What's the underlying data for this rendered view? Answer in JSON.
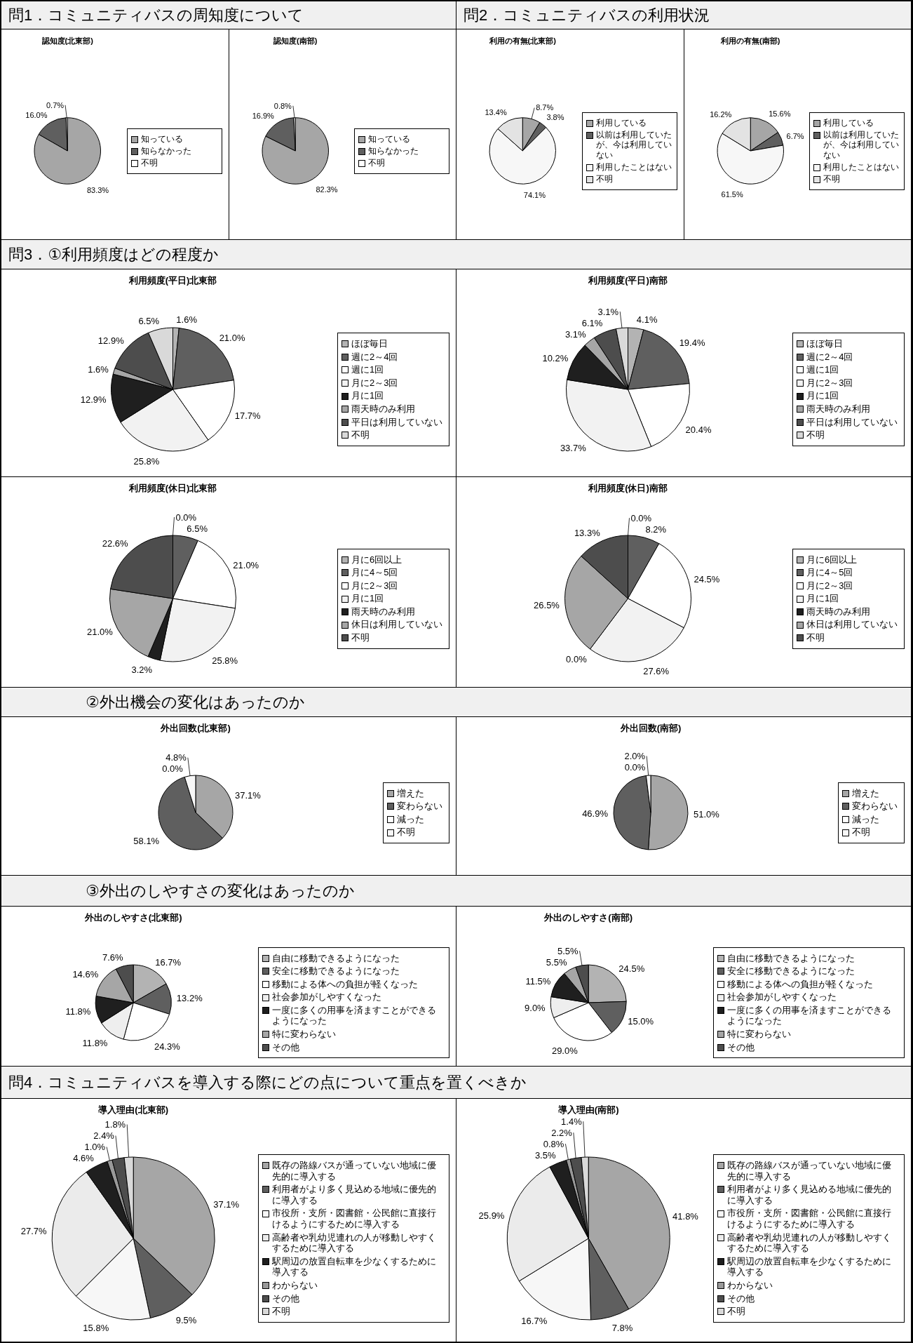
{
  "chart_data": [
    {
      "type": "pie",
      "title": "認知度(北東部)",
      "annotations": [
        "問1．コミュニティバスの周知度について"
      ],
      "categories": [
        "知っている",
        "知らなかった",
        "不明"
      ],
      "values": [
        83.3,
        16.0,
        0.7
      ],
      "value_labels": [
        "83.3%",
        "16.0%",
        "0.7%"
      ],
      "colors": [
        "#a6a6a6",
        "#5f5f5f",
        "#ffffff"
      ],
      "legend": "right"
    },
    {
      "type": "pie",
      "title": "認知度(南部)",
      "categories": [
        "知っている",
        "知らなかった",
        "不明"
      ],
      "values": [
        82.3,
        16.9,
        0.8
      ],
      "value_labels": [
        "82.3%",
        "16.9%",
        "0.8%"
      ],
      "colors": [
        "#a6a6a6",
        "#5f5f5f",
        "#ffffff"
      ],
      "legend": "right"
    },
    {
      "type": "pie",
      "title": "利用の有無(北東部)",
      "annotations": [
        "問2．コミュニティバスの利用状況"
      ],
      "categories": [
        "利用している",
        "以前は利用していたが、今は利用していない",
        "利用したことはない",
        "不明"
      ],
      "values": [
        8.7,
        3.8,
        74.1,
        13.4
      ],
      "value_labels": [
        "8.7%",
        "3.8%",
        "74.1%",
        "13.4%"
      ],
      "colors": [
        "#a6a6a6",
        "#5f5f5f",
        "#f7f7f7",
        "#e3e3e3"
      ],
      "legend": "right"
    },
    {
      "type": "pie",
      "title": "利用の有無(南部)",
      "categories": [
        "利用している",
        "以前は利用していたが、今は利用していない",
        "利用したことはない",
        "不明"
      ],
      "values": [
        15.6,
        6.7,
        61.5,
        16.2
      ],
      "value_labels": [
        "15.6%",
        "6.7%",
        "61.5%",
        "16.2%"
      ],
      "colors": [
        "#a6a6a6",
        "#5f5f5f",
        "#f7f7f7",
        "#e3e3e3"
      ],
      "legend": "right"
    },
    {
      "type": "pie",
      "title": "利用頻度(平日)北東部",
      "annotations": [
        "問3．①利用頻度はどの程度か"
      ],
      "categories": [
        "ほぼ毎日",
        "週に2～4回",
        "週に1回",
        "月に2～3回",
        "月に1回",
        "雨天時のみ利用",
        "平日は利用していない",
        "不明"
      ],
      "values": [
        1.6,
        21.0,
        17.7,
        25.8,
        12.9,
        1.6,
        12.9,
        6.5
      ],
      "value_labels": [
        "1.6%",
        "21.0%",
        "17.7%",
        "25.8%",
        "12.9%",
        "1.6%",
        "12.9%",
        "6.5%"
      ],
      "colors": [
        "#b3b3b3",
        "#5f5f5f",
        "#ffffff",
        "#f2f2f2",
        "#1f1f1f",
        "#a6a6a6",
        "#4d4d4d",
        "#d9d9d9"
      ],
      "legend": "right"
    },
    {
      "type": "pie",
      "title": "利用頻度(平日)南部",
      "categories": [
        "ほぼ毎日",
        "週に2～4回",
        "週に1回",
        "月に2～3回",
        "月に1回",
        "雨天時のみ利用",
        "平日は利用していない",
        "不明"
      ],
      "values": [
        4.1,
        19.4,
        20.4,
        33.7,
        10.2,
        3.1,
        6.1,
        3.1
      ],
      "value_labels": [
        "4.1%",
        "19.4%",
        "20.4%",
        "33.7%",
        "10.2%",
        "3.1%",
        "6.1%",
        "3.1%"
      ],
      "colors": [
        "#b3b3b3",
        "#5f5f5f",
        "#ffffff",
        "#f2f2f2",
        "#1f1f1f",
        "#a6a6a6",
        "#4d4d4d",
        "#d9d9d9"
      ],
      "legend": "right"
    },
    {
      "type": "pie",
      "title": "利用頻度(休日)北東部",
      "categories": [
        "月に6回以上",
        "月に4～5回",
        "月に2～3回",
        "月に1回",
        "雨天時のみ利用",
        "休日は利用していない",
        "不明"
      ],
      "values": [
        0.0,
        6.5,
        21.0,
        25.8,
        3.2,
        21.0,
        22.6
      ],
      "value_labels": [
        "0.0%",
        "6.5%",
        "21.0%",
        "25.8%",
        "3.2%",
        "21.0%",
        "22.6%"
      ],
      "colors": [
        "#b3b3b3",
        "#5f5f5f",
        "#ffffff",
        "#f2f2f2",
        "#1f1f1f",
        "#a6a6a6",
        "#4d4d4d"
      ],
      "legend": "right"
    },
    {
      "type": "pie",
      "title": "利用頻度(休日)南部",
      "categories": [
        "月に6回以上",
        "月に4～5回",
        "月に2～3回",
        "月に1回",
        "雨天時のみ利用",
        "休日は利用していない",
        "不明"
      ],
      "values": [
        0.0,
        8.2,
        24.5,
        27.6,
        0.0,
        26.5,
        13.3
      ],
      "value_labels": [
        "0.0%",
        "8.2%",
        "24.5%",
        "27.6%",
        "0.0%",
        "26.5%",
        "13.3%"
      ],
      "colors": [
        "#b3b3b3",
        "#5f5f5f",
        "#ffffff",
        "#f2f2f2",
        "#1f1f1f",
        "#a6a6a6",
        "#4d4d4d"
      ],
      "legend": "right"
    },
    {
      "type": "pie",
      "title": "外出回数(北東部)",
      "annotations": [
        "②外出機会の変化はあったのか"
      ],
      "categories": [
        "増えた",
        "変わらない",
        "減った",
        "不明"
      ],
      "values": [
        37.1,
        58.1,
        0.0,
        4.8
      ],
      "value_labels": [
        "37.1%",
        "58.1%",
        "0.0%",
        "4.8%"
      ],
      "colors": [
        "#a6a6a6",
        "#5f5f5f",
        "#ffffff",
        "#f7f7f7"
      ],
      "legend": "right"
    },
    {
      "type": "pie",
      "title": "外出回数(南部)",
      "categories": [
        "増えた",
        "変わらない",
        "減った",
        "不明"
      ],
      "values": [
        51.0,
        46.9,
        0.0,
        2.0
      ],
      "value_labels": [
        "51.0%",
        "46.9%",
        "0.0%",
        "2.0%"
      ],
      "colors": [
        "#a6a6a6",
        "#5f5f5f",
        "#ffffff",
        "#f7f7f7"
      ],
      "legend": "right"
    },
    {
      "type": "pie",
      "title": "外出のしやすさ(北東部)",
      "annotations": [
        "③外出のしやすさの変化はあったのか"
      ],
      "categories": [
        "自由に移動できるようになった",
        "安全に移動できるようになった",
        "移動による体への負担が軽くなった",
        "社会参加がしやすくなった",
        "一度に多くの用事を済ますことができるようになった",
        "特に変わらない",
        "その他"
      ],
      "values": [
        16.7,
        13.2,
        24.3,
        11.8,
        11.8,
        14.6,
        7.6
      ],
      "value_labels": [
        "16.7%",
        "13.2%",
        "24.3%",
        "11.8%",
        "11.8%",
        "14.6%",
        "7.6%"
      ],
      "colors": [
        "#b3b3b3",
        "#5f5f5f",
        "#ffffff",
        "#eeeeee",
        "#1f1f1f",
        "#a6a6a6",
        "#4d4d4d"
      ],
      "legend": "right"
    },
    {
      "type": "pie",
      "title": "外出のしやすさ(南部)",
      "categories": [
        "自由に移動できるようになった",
        "安全に移動できるようになった",
        "移動による体への負担が軽くなった",
        "社会参加がしやすくなった",
        "一度に多くの用事を済ますことができるようになった",
        "特に変わらない",
        "その他"
      ],
      "values": [
        24.5,
        15.0,
        29.0,
        9.0,
        11.5,
        5.5,
        5.5
      ],
      "value_labels": [
        "24.5%",
        "15.0%",
        "29.0%",
        "9.0%",
        "11.5%",
        "5.5%",
        "5.5%"
      ],
      "colors": [
        "#b3b3b3",
        "#5f5f5f",
        "#ffffff",
        "#eeeeee",
        "#1f1f1f",
        "#a6a6a6",
        "#4d4d4d"
      ],
      "legend": "right"
    },
    {
      "type": "pie",
      "title": "導入理由(北東部)",
      "annotations": [
        "問4．コミュニティバスを導入する際にどの点について重点を置くべきか"
      ],
      "categories": [
        "既存の路線バスが通っていない地域に優先的に導入する",
        "利用者がより多く見込める地域に優先的に導入する",
        "市役所・支所・図書館・公民館に直接行けるようにするために導入する",
        "高齢者や乳幼児連れの人が移動しやすくするために導入する",
        "駅周辺の放置自転車を少なくするために導入する",
        "わからない",
        "その他",
        "不明"
      ],
      "values": [
        37.1,
        9.5,
        15.8,
        27.7,
        4.6,
        1.0,
        2.4,
        1.8
      ],
      "value_labels": [
        "37.1%",
        "9.5%",
        "15.8%",
        "27.7%",
        "4.6%",
        "1.0%",
        "2.4%",
        "1.8%"
      ],
      "colors": [
        "#a6a6a6",
        "#5f5f5f",
        "#f7f7f7",
        "#ebebeb",
        "#1f1f1f",
        "#999999",
        "#4d4d4d",
        "#d9d9d9"
      ],
      "legend": "right"
    },
    {
      "type": "pie",
      "title": "導入理由(南部)",
      "categories": [
        "既存の路線バスが通っていない地域に優先的に導入する",
        "利用者がより多く見込める地域に優先的に導入する",
        "市役所・支所・図書館・公民館に直接行けるようにするために導入する",
        "高齢者や乳幼児連れの人が移動しやすくするために導入する",
        "駅周辺の放置自転車を少なくするために導入する",
        "わからない",
        "その他",
        "不明"
      ],
      "values": [
        41.8,
        7.8,
        16.7,
        25.9,
        3.5,
        0.8,
        2.2,
        1.4
      ],
      "value_labels": [
        "41.8%",
        "7.8%",
        "16.7%",
        "25.9%",
        "3.5%",
        "0.8%",
        "2.2%",
        "1.4%"
      ],
      "colors": [
        "#a6a6a6",
        "#5f5f5f",
        "#f7f7f7",
        "#ebebeb",
        "#1f1f1f",
        "#999999",
        "#4d4d4d",
        "#d9d9d9"
      ],
      "legend": "right"
    }
  ]
}
